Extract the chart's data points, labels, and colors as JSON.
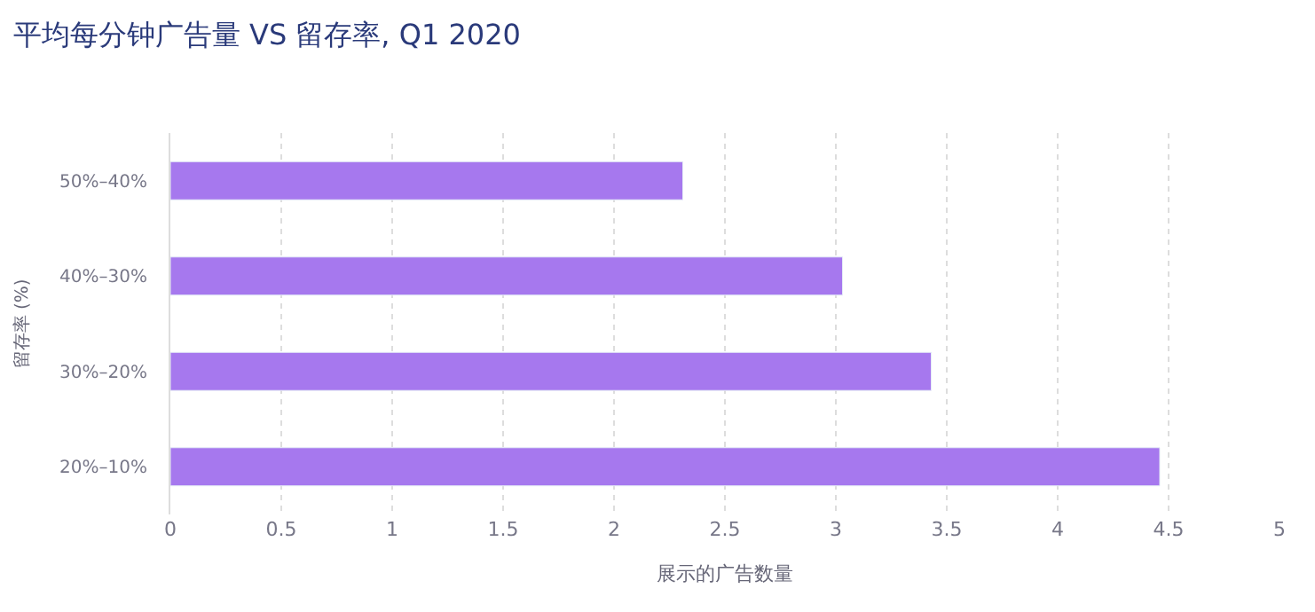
{
  "chart_data": {
    "type": "bar",
    "orientation": "horizontal",
    "title": "平均每分钟广告量 VS 留存率, Q1 2020",
    "xlabel": "展示的广告数量",
    "ylabel": "留存率 (%)",
    "categories": [
      "50%–40%",
      "40%–30%",
      "30%–20%",
      "20%–10%"
    ],
    "values": [
      2.31,
      3.03,
      3.43,
      4.46
    ],
    "color": "#a678ee",
    "xlim": [
      0,
      5
    ],
    "xticks": [
      0,
      0.5,
      1,
      1.5,
      2,
      2.5,
      3,
      3.5,
      4,
      4.5,
      5
    ],
    "grid": "x"
  }
}
